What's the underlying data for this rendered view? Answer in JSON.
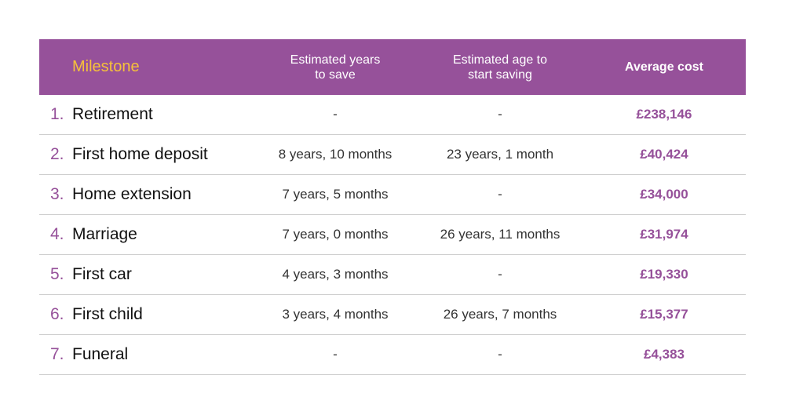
{
  "colors": {
    "header_bg": "#96519a",
    "header_milestone_text": "#f6c13a",
    "accent": "#96519a"
  },
  "header": {
    "milestone": "Milestone",
    "years_line1": "Estimated years",
    "years_line2": "to save",
    "age_line1": "Estimated age to",
    "age_line2": "start saving",
    "cost": "Average cost"
  },
  "rows": [
    {
      "num": "1.",
      "name": "Retirement",
      "years": "-",
      "age": "-",
      "cost": "£238,146"
    },
    {
      "num": "2.",
      "name": "First home deposit",
      "years": "8 years, 10 months",
      "age": "23 years, 1 month",
      "cost": "£40,424"
    },
    {
      "num": "3.",
      "name": "Home extension",
      "years": "7 years, 5 months",
      "age": "-",
      "cost": "£34,000"
    },
    {
      "num": "4.",
      "name": "Marriage",
      "years": "7 years, 0 months",
      "age": "26 years, 11 months",
      "cost": "£31,974"
    },
    {
      "num": "5.",
      "name": "First car",
      "years": "4 years, 3 months",
      "age": "-",
      "cost": "£19,330"
    },
    {
      "num": "6.",
      "name": "First child",
      "years": "3 years, 4 months",
      "age": "26 years, 7 months",
      "cost": "£15,377"
    },
    {
      "num": "7.",
      "name": "Funeral",
      "years": "-",
      "age": "-",
      "cost": "£4,383"
    }
  ]
}
